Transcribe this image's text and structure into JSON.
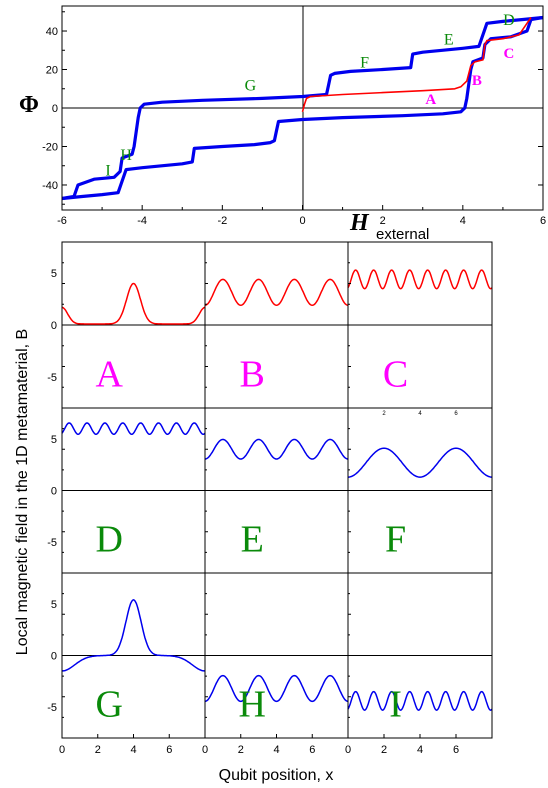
{
  "colors": {
    "magenta": "#ff00ff",
    "green": "#0a8a0a",
    "red": "#ff0000",
    "blue": "#0000ee",
    "black": "#000000"
  },
  "chart_data": [
    {
      "type": "line",
      "ylabel": "Φ",
      "xlabel_main": "H",
      "xlabel_sub": "external",
      "xlim": [
        -6,
        6
      ],
      "ylim": [
        -53,
        53
      ],
      "x_ticks": [
        "-6",
        "-4",
        "-2",
        "0",
        "2",
        "4",
        "6"
      ],
      "y_ticks": [
        "40",
        "20",
        "0",
        "-20",
        "-40"
      ],
      "annotations": [
        {
          "text": "A",
          "x": 3.2,
          "y": 2,
          "color": "magenta"
        },
        {
          "text": "B",
          "x": 4.35,
          "y": 12,
          "color": "magenta"
        },
        {
          "text": "C",
          "x": 5.15,
          "y": 26,
          "color": "magenta"
        },
        {
          "text": "D",
          "x": 5.15,
          "y": 43,
          "color": "green"
        },
        {
          "text": "E",
          "x": 3.65,
          "y": 33,
          "color": "green"
        },
        {
          "text": "F",
          "x": 1.55,
          "y": 21,
          "color": "green"
        },
        {
          "text": "G",
          "x": -1.3,
          "y": 9,
          "color": "green"
        },
        {
          "text": "H",
          "x": -4.4,
          "y": -27,
          "color": "green"
        },
        {
          "text": "I",
          "x": -4.85,
          "y": -35,
          "color": "green"
        }
      ],
      "series": [
        {
          "color": "blue",
          "x": [
            -6,
            -5.7,
            -5.6,
            -5.2,
            -4.7,
            -4.55,
            -4.5,
            -4.25,
            -4.2,
            -4.1,
            -4.05,
            -3.95,
            -3.5,
            -2.5,
            -1.0,
            0.0,
            0.6,
            0.65,
            0.7,
            0.8,
            1.2,
            2.0,
            2.7,
            2.75,
            3.0,
            4.0,
            4.4,
            4.5,
            4.6,
            5.0,
            5.5,
            6.0
          ],
          "y": [
            -47,
            -46,
            -40,
            -37,
            -36,
            -33,
            -26,
            -24,
            -20,
            -5,
            0,
            2,
            3,
            4,
            5,
            6,
            7,
            12,
            17,
            18,
            19,
            20,
            21,
            28,
            29,
            31,
            32,
            38,
            44,
            45,
            46,
            47
          ]
        },
        {
          "color": "blue",
          "x": [
            6,
            5.7,
            5.6,
            5.2,
            4.7,
            4.55,
            4.5,
            4.25,
            4.2,
            4.1,
            4.05,
            3.95,
            3.5,
            2.5,
            1.0,
            0.0,
            -0.6,
            -0.65,
            -0.7,
            -0.8,
            -1.2,
            -2.0,
            -2.7,
            -2.75,
            -3.0,
            -4.0,
            -4.4,
            -4.5,
            -4.6,
            -5.0,
            -5.5,
            -6.0
          ],
          "y": [
            47,
            46,
            40,
            37,
            36,
            33,
            26,
            24,
            20,
            5,
            0,
            -2,
            -3,
            -4,
            -5,
            -6,
            -7,
            -12,
            -17,
            -18,
            -19,
            -20,
            -21,
            -28,
            -29,
            -31,
            -32,
            -38,
            -44,
            -45,
            -46,
            -47
          ]
        },
        {
          "color": "red",
          "x": [
            0.0,
            0.05,
            0.1,
            0.2,
            1.0,
            2.0,
            3.0,
            3.8,
            3.95,
            4.1,
            4.2,
            4.3,
            4.5,
            4.55,
            4.6,
            5.0,
            5.4,
            5.6,
            5.7
          ],
          "y": [
            -2,
            2,
            5,
            6,
            7,
            8,
            9,
            10,
            11,
            14,
            22,
            24,
            25,
            33,
            35,
            36,
            38,
            44,
            47
          ]
        }
      ]
    },
    {
      "type": "line",
      "ylabel": "Local magnetic field in the 1D metamaterial, B",
      "xlabel": "Qubit position, x",
      "xlim": [
        0,
        8
      ],
      "ylim": [
        -8,
        8
      ],
      "x_ticks": [
        "0",
        "2",
        "4",
        "6"
      ],
      "y_ticks": [
        "5",
        "0",
        "-5"
      ],
      "inset_ticks": [
        "2",
        "4",
        "6"
      ],
      "panels": [
        {
          "label": "A",
          "label_color": "magenta",
          "curve_color": "red",
          "curve": "bump",
          "center": 4,
          "base": 0.1,
          "amp": 3.9
        },
        {
          "label": "B",
          "label_color": "magenta",
          "curve_color": "red",
          "curve": "cos",
          "base": 3.15,
          "amp": 1.25,
          "k": 1,
          "phase": -1
        },
        {
          "label": "C",
          "label_color": "magenta",
          "curve_color": "red",
          "curve": "cos",
          "base": 4.4,
          "amp": 0.9,
          "k": 2,
          "phase": -0.7
        },
        {
          "label": "D",
          "label_color": "green",
          "curve_color": "blue",
          "curve": "cos",
          "base": 6.0,
          "amp": 0.55,
          "k": 2,
          "phase": -0.6
        },
        {
          "label": "E",
          "label_color": "green",
          "curve_color": "blue",
          "curve": "cos",
          "base": 4.0,
          "amp": 0.95,
          "k": 1,
          "phase": -1
        },
        {
          "label": "F",
          "label_color": "green",
          "curve_color": "blue",
          "curve": "cos",
          "base": 2.7,
          "amp": 1.4,
          "k": 0.5,
          "phase": -1
        },
        {
          "label": "G",
          "label_color": "green",
          "curve_color": "blue",
          "curve": "bump2",
          "center": 4,
          "base": -1.5,
          "amp": 5.4
        },
        {
          "label": "H",
          "label_color": "green",
          "curve_color": "blue",
          "curve": "cos",
          "base": -3.2,
          "amp": 1.25,
          "k": 1,
          "phase": -1
        },
        {
          "label": "I",
          "label_color": "green",
          "curve_color": "blue",
          "curve": "cos",
          "base": -4.4,
          "amp": 0.9,
          "k": 2,
          "phase": -0.7
        }
      ]
    }
  ]
}
